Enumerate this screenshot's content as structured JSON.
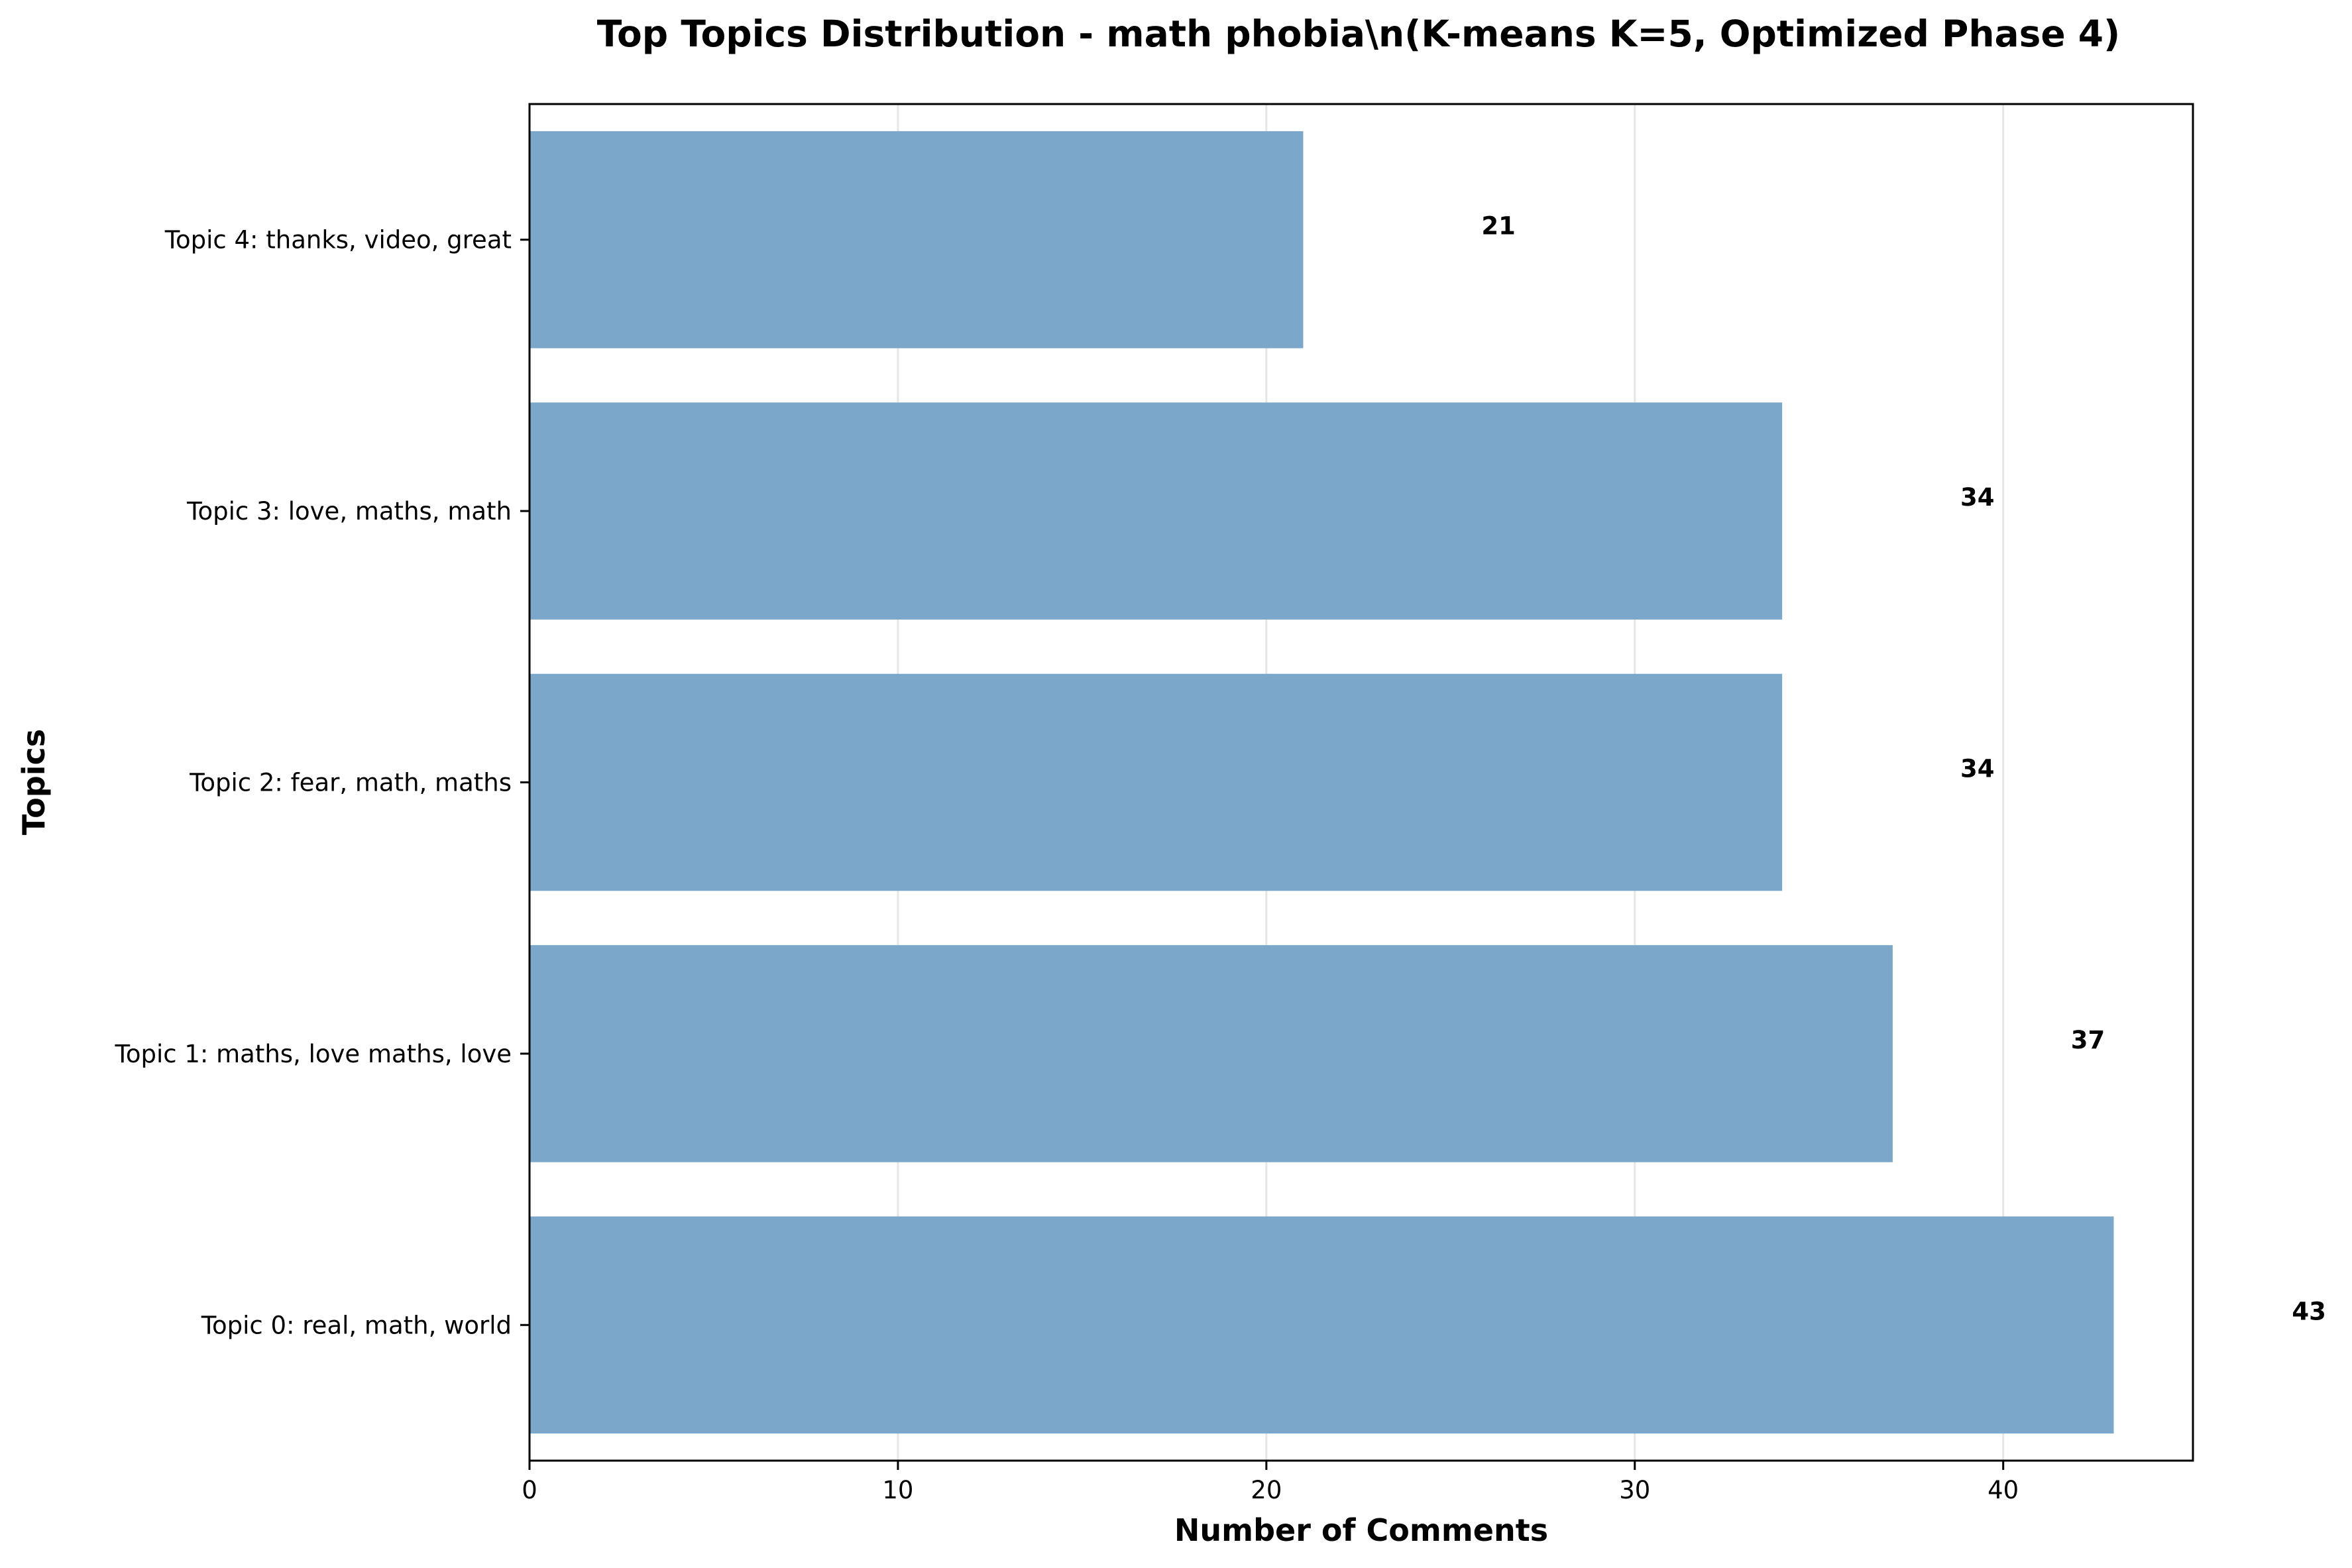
{
  "chart_data": {
    "type": "bar",
    "orientation": "horizontal",
    "title": "Top Topics Distribution - math phobia\\n(K-means K=5, Optimized Phase 4)",
    "xlabel": "Number of Comments",
    "ylabel": "Topics",
    "categories": [
      "Topic 0: real, math, world",
      "Topic 1: maths, love maths, love",
      "Topic 2: fear, math, maths",
      "Topic 3: love, maths, math",
      "Topic 4: thanks, video, great"
    ],
    "values": [
      43,
      37,
      34,
      34,
      21
    ],
    "value_labels": [
      "43",
      "37",
      "34",
      "34",
      "21"
    ],
    "xlim": [
      0,
      45.15
    ],
    "xticks": [
      0,
      10,
      20,
      30,
      40
    ],
    "xtick_labels": [
      "0",
      "10",
      "20",
      "30",
      "40"
    ],
    "grid": "vertical",
    "bar_color": "#7ba7cb",
    "grid_color": "#e6e6e6"
  }
}
